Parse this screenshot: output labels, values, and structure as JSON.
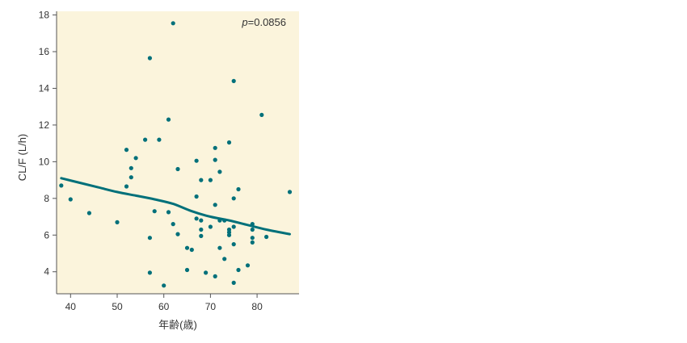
{
  "chart_data": {
    "type": "scatter",
    "xlabel": "年齢(歳)",
    "ylabel": "CL/F (L/h)",
    "xlim": [
      37,
      89
    ],
    "ylim": [
      2.8,
      18.2
    ],
    "xticks": [
      40,
      50,
      60,
      70,
      80
    ],
    "yticks": [
      4,
      6,
      8,
      10,
      12,
      14,
      16,
      18
    ],
    "xtick_labels": [
      "40",
      "50",
      "60",
      "70",
      "80"
    ],
    "ytick_labels": [
      "4",
      "6",
      "8",
      "10",
      "12",
      "14",
      "16",
      "18"
    ],
    "annotation": {
      "prefix": "p",
      "value": "=0.0856"
    },
    "colors": {
      "background": "#fbf4dc",
      "points": "#00707a",
      "trend": "#00707a",
      "axis": "#555555"
    },
    "grid": false,
    "points": [
      {
        "x": 38,
        "y": 8.7
      },
      {
        "x": 40,
        "y": 7.95
      },
      {
        "x": 44,
        "y": 7.2
      },
      {
        "x": 50,
        "y": 6.7
      },
      {
        "x": 52,
        "y": 10.65
      },
      {
        "x": 52,
        "y": 8.65
      },
      {
        "x": 53,
        "y": 9.65
      },
      {
        "x": 53,
        "y": 9.15
      },
      {
        "x": 54,
        "y": 10.2
      },
      {
        "x": 56,
        "y": 11.2
      },
      {
        "x": 57,
        "y": 15.65
      },
      {
        "x": 57,
        "y": 5.85
      },
      {
        "x": 57,
        "y": 3.95
      },
      {
        "x": 58,
        "y": 7.3
      },
      {
        "x": 59,
        "y": 11.2
      },
      {
        "x": 60,
        "y": 3.25
      },
      {
        "x": 61,
        "y": 12.3
      },
      {
        "x": 61,
        "y": 7.25
      },
      {
        "x": 62,
        "y": 17.55
      },
      {
        "x": 62,
        "y": 6.6
      },
      {
        "x": 63,
        "y": 9.6
      },
      {
        "x": 63,
        "y": 6.05
      },
      {
        "x": 65,
        "y": 5.3
      },
      {
        "x": 65,
        "y": 4.1
      },
      {
        "x": 66,
        "y": 5.2
      },
      {
        "x": 67,
        "y": 10.05
      },
      {
        "x": 67,
        "y": 8.1
      },
      {
        "x": 67,
        "y": 6.9
      },
      {
        "x": 68,
        "y": 9.0
      },
      {
        "x": 68,
        "y": 6.8
      },
      {
        "x": 68,
        "y": 6.3
      },
      {
        "x": 68,
        "y": 5.95
      },
      {
        "x": 69,
        "y": 3.95
      },
      {
        "x": 70,
        "y": 9.0
      },
      {
        "x": 70,
        "y": 6.45
      },
      {
        "x": 71,
        "y": 10.75
      },
      {
        "x": 71,
        "y": 10.1
      },
      {
        "x": 71,
        "y": 7.65
      },
      {
        "x": 71,
        "y": 3.75
      },
      {
        "x": 72,
        "y": 9.45
      },
      {
        "x": 72,
        "y": 6.8
      },
      {
        "x": 72,
        "y": 5.3
      },
      {
        "x": 73,
        "y": 6.8
      },
      {
        "x": 73,
        "y": 4.7
      },
      {
        "x": 74,
        "y": 11.05
      },
      {
        "x": 74,
        "y": 6.3
      },
      {
        "x": 74,
        "y": 6.15
      },
      {
        "x": 74,
        "y": 6.0
      },
      {
        "x": 75,
        "y": 14.4
      },
      {
        "x": 75,
        "y": 8.0
      },
      {
        "x": 75,
        "y": 6.45
      },
      {
        "x": 75,
        "y": 5.5
      },
      {
        "x": 75,
        "y": 3.4
      },
      {
        "x": 76,
        "y": 8.5
      },
      {
        "x": 76,
        "y": 4.1
      },
      {
        "x": 78,
        "y": 4.35
      },
      {
        "x": 79,
        "y": 6.6
      },
      {
        "x": 79,
        "y": 6.3
      },
      {
        "x": 79,
        "y": 5.85
      },
      {
        "x": 79,
        "y": 5.6
      },
      {
        "x": 81,
        "y": 12.55
      },
      {
        "x": 82,
        "y": 5.9
      },
      {
        "x": 87,
        "y": 8.35
      }
    ],
    "trend_line": {
      "x": [
        38,
        42,
        46,
        50,
        54,
        58,
        62,
        66,
        70,
        74,
        78,
        82,
        87
      ],
      "y": [
        9.1,
        8.85,
        8.6,
        8.35,
        8.15,
        7.95,
        7.7,
        7.3,
        7.0,
        6.8,
        6.55,
        6.3,
        6.05
      ]
    }
  }
}
